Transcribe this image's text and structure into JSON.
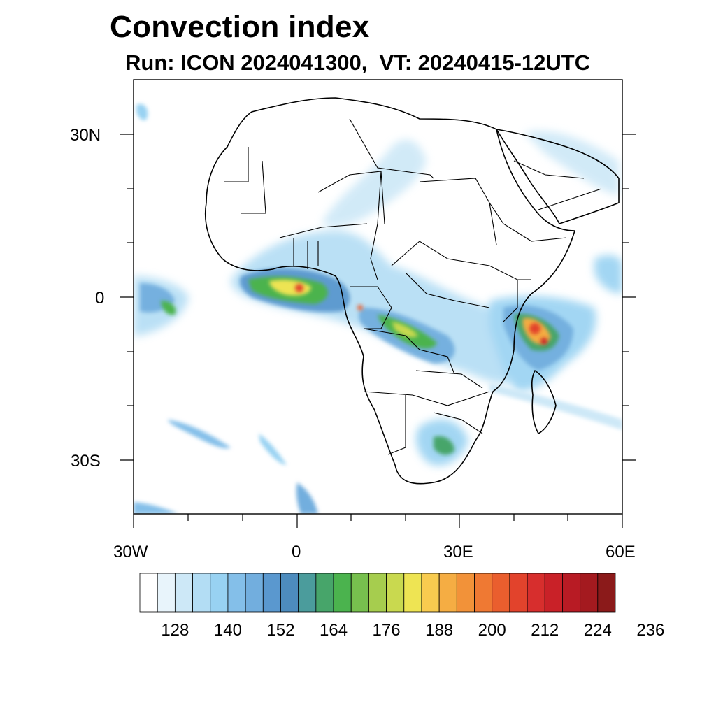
{
  "title": "Convection index",
  "subtitle": "Run: ICON 2024041300,  VT: 20240415-12UTC",
  "axes": {
    "y_labels": [
      "30N",
      "0",
      "30S"
    ],
    "x_labels": [
      "30W",
      "0",
      "30E",
      "60E"
    ]
  },
  "colorbar": {
    "labels": [
      "128",
      "140",
      "152",
      "164",
      "176",
      "188",
      "200",
      "212",
      "224",
      "236"
    ],
    "colors": [
      "#ffffff",
      "#e8f4fb",
      "#cde8f7",
      "#b3ddf4",
      "#98d2f2",
      "#84bfe9",
      "#72aede",
      "#5a98cf",
      "#4d8cbe",
      "#4b9c9c",
      "#47a56a",
      "#4bb34e",
      "#77c04e",
      "#a6cd4e",
      "#c9d94f",
      "#eee453",
      "#f8cb4f",
      "#f5ad43",
      "#f29239",
      "#ef7933",
      "#ea5e2e",
      "#e2432c",
      "#d72e2d",
      "#c92128",
      "#b81b24",
      "#a41a1f",
      "#8b1a1a"
    ]
  },
  "chart_data": {
    "type": "map",
    "title": "Convection index",
    "subtitle": "Run: ICON 2024041300,  VT: 20240415-12UTC",
    "lon_range": [
      -30,
      60
    ],
    "lat_range": [
      -40,
      40
    ],
    "x_ticks": [
      -30,
      0,
      30,
      60
    ],
    "y_ticks": [
      30,
      0,
      -30
    ],
    "colorbar_levels": [
      128,
      132,
      136,
      140,
      144,
      148,
      152,
      156,
      160,
      164,
      168,
      172,
      176,
      180,
      184,
      188,
      192,
      196,
      200,
      204,
      208,
      212,
      216,
      220,
      224,
      228,
      232,
      236
    ],
    "colorbar_labels": [
      128,
      140,
      152,
      164,
      176,
      188,
      200,
      212,
      224,
      236
    ]
  }
}
